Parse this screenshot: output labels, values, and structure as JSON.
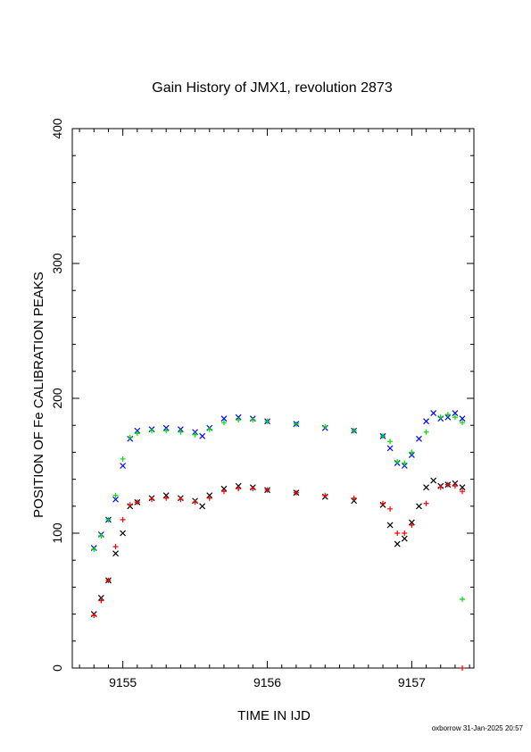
{
  "chart_data": {
    "type": "scatter",
    "title": "Gain History of JMX1, revolution 2873",
    "xlabel": "TIME IN IJD",
    "ylabel": "POSITION OF Fe CALIBRATION PEAKS",
    "xlim": [
      9154.65,
      9157.43
    ],
    "ylim": [
      0,
      400
    ],
    "x_ticks": [
      9155,
      9156,
      9157
    ],
    "x_tick_labels": [
      "9155",
      "9156",
      "9157"
    ],
    "y_ticks": [
      0,
      100,
      200,
      300,
      400
    ],
    "y_tick_labels": [
      "0",
      "100",
      "200",
      "300",
      "400"
    ],
    "grid": false,
    "legend": "none",
    "series": [
      {
        "marker": "x",
        "color": "#0000ff",
        "x": [
          9154.8,
          9154.85,
          9154.9,
          9154.95,
          9155.0,
          9155.05,
          9155.1,
          9155.2,
          9155.3,
          9155.4,
          9155.5,
          9155.55,
          9155.6,
          9155.7,
          9155.8,
          9155.9,
          9156.0,
          9156.2,
          9156.4,
          9156.6,
          9156.8,
          9156.85,
          9156.9,
          9156.95,
          9157.0,
          9157.05,
          9157.1,
          9157.15,
          9157.2,
          9157.25,
          9157.3,
          9157.35
        ],
        "y": [
          89,
          99,
          110,
          125,
          150,
          170,
          176,
          177,
          178,
          177,
          175,
          172,
          178,
          185,
          186,
          185,
          183,
          181,
          178,
          176,
          172,
          163,
          152,
          150,
          158,
          170,
          183,
          189,
          185,
          186,
          189,
          185
        ]
      },
      {
        "marker": "x",
        "color": "#000000",
        "x": [
          9154.8,
          9154.85,
          9154.9,
          9154.95,
          9155.0,
          9155.05,
          9155.1,
          9155.2,
          9155.3,
          9155.4,
          9155.5,
          9155.55,
          9155.6,
          9155.7,
          9155.8,
          9155.9,
          9156.0,
          9156.2,
          9156.4,
          9156.6,
          9156.8,
          9156.85,
          9156.9,
          9156.95,
          9157.0,
          9157.05,
          9157.1,
          9157.15,
          9157.2,
          9157.25,
          9157.3,
          9157.35
        ],
        "y": [
          40,
          52,
          65,
          85,
          100,
          120,
          123,
          126,
          128,
          126,
          124,
          120,
          128,
          133,
          135,
          134,
          132,
          130,
          127,
          124,
          121,
          106,
          92,
          96,
          108,
          120,
          134,
          139,
          135,
          136,
          137,
          134
        ]
      },
      {
        "marker": "+",
        "color": "#00dd00",
        "x": [
          9154.8,
          9154.85,
          9154.9,
          9154.95,
          9155.0,
          9155.05,
          9155.1,
          9155.2,
          9155.3,
          9155.4,
          9155.5,
          9155.6,
          9155.7,
          9155.8,
          9155.9,
          9156.0,
          9156.2,
          9156.4,
          9156.6,
          9156.8,
          9156.85,
          9156.9,
          9156.95,
          9157.0,
          9157.1,
          9157.2,
          9157.25,
          9157.3,
          9157.35
        ],
        "y": [
          88,
          98,
          110,
          128,
          155,
          171,
          174,
          176,
          176,
          175,
          173,
          177,
          182,
          184,
          184,
          183,
          181,
          179,
          176,
          172,
          168,
          153,
          152,
          160,
          175,
          186,
          188,
          186,
          182
        ]
      },
      {
        "marker": "+",
        "color": "#ff0000",
        "x": [
          9154.8,
          9154.85,
          9154.9,
          9154.95,
          9155.0,
          9155.05,
          9155.1,
          9155.2,
          9155.3,
          9155.4,
          9155.5,
          9155.6,
          9155.7,
          9155.8,
          9155.9,
          9156.0,
          9156.2,
          9156.4,
          9156.6,
          9156.8,
          9156.85,
          9156.9,
          9156.95,
          9157.0,
          9157.1,
          9157.2,
          9157.25,
          9157.3,
          9157.35
        ],
        "y": [
          39,
          50,
          65,
          90,
          110,
          121,
          123,
          125,
          126,
          125,
          123,
          126,
          131,
          133,
          133,
          132,
          130,
          128,
          126,
          122,
          118,
          100,
          100,
          106,
          122,
          134,
          136,
          135,
          131
        ]
      },
      {
        "marker": "+",
        "color": "#00dd00",
        "x": [
          9157.35
        ],
        "y": [
          51
        ]
      },
      {
        "marker": "+",
        "color": "#ff0000",
        "x": [
          9157.35
        ],
        "y": [
          0
        ]
      }
    ]
  },
  "footer": "oxborrow 31-Jan-2025 20:57"
}
